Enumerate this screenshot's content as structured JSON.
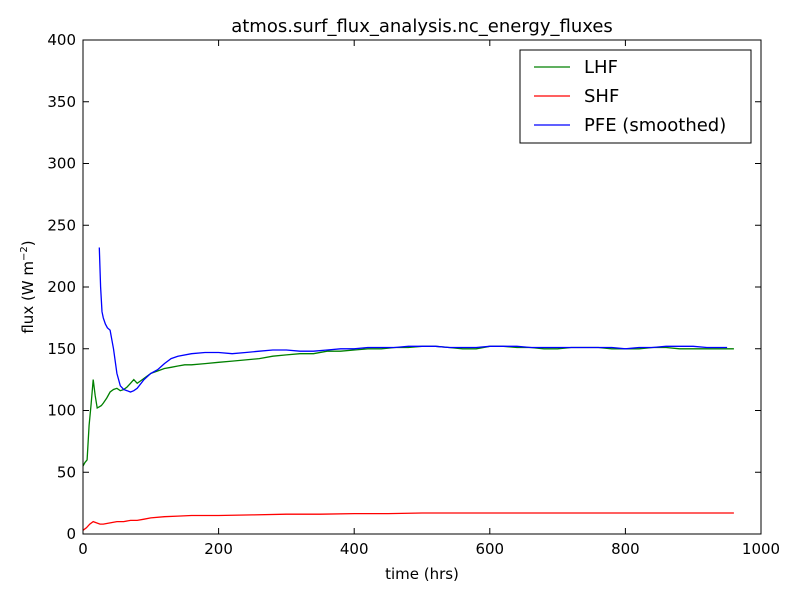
{
  "chart_data": {
    "type": "line",
    "title": "atmos.surf_flux_analysis.nc_energy_fluxes",
    "xlabel": "time (hrs)",
    "ylabel_main": "flux (W m",
    "ylabel_sup": "−2",
    "ylabel_close": ")",
    "xlim": [
      0,
      1000
    ],
    "ylim": [
      0,
      400
    ],
    "xticks": [
      0,
      200,
      400,
      600,
      800,
      1000
    ],
    "yticks": [
      0,
      50,
      100,
      150,
      200,
      250,
      300,
      350,
      400
    ],
    "grid": false,
    "legend_position": "top-right",
    "series": [
      {
        "name": "LHF",
        "color": "#008000",
        "x": [
          0,
          3,
          6,
          9,
          12,
          15,
          18,
          21,
          24,
          27,
          30,
          35,
          40,
          45,
          50,
          55,
          60,
          65,
          70,
          75,
          80,
          85,
          90,
          95,
          100,
          110,
          120,
          130,
          140,
          150,
          160,
          180,
          200,
          220,
          240,
          260,
          280,
          300,
          320,
          340,
          360,
          380,
          400,
          420,
          440,
          460,
          480,
          500,
          520,
          540,
          560,
          580,
          600,
          620,
          640,
          660,
          680,
          700,
          720,
          740,
          760,
          780,
          800,
          820,
          840,
          860,
          880,
          900,
          920,
          940,
          960
        ],
        "y": [
          55,
          58,
          60,
          88,
          105,
          125,
          112,
          102,
          103,
          104,
          106,
          110,
          115,
          117,
          118,
          116,
          117,
          119,
          122,
          125,
          122,
          124,
          126,
          128,
          130,
          132,
          134,
          135,
          136,
          137,
          137,
          138,
          139,
          140,
          141,
          142,
          144,
          145,
          146,
          146,
          148,
          148,
          149,
          150,
          150,
          151,
          151,
          152,
          152,
          151,
          150,
          150,
          152,
          152,
          151,
          151,
          150,
          150,
          151,
          151,
          151,
          150,
          150,
          150,
          151,
          151,
          150,
          150,
          150,
          150,
          150
        ]
      },
      {
        "name": "SHF",
        "color": "#ff0000",
        "x": [
          0,
          5,
          10,
          15,
          20,
          25,
          30,
          40,
          50,
          60,
          70,
          80,
          90,
          100,
          120,
          140,
          160,
          200,
          250,
          300,
          350,
          400,
          450,
          500,
          550,
          600,
          650,
          700,
          750,
          800,
          850,
          900,
          960
        ],
        "y": [
          3,
          5,
          8,
          10,
          9,
          8,
          8,
          9,
          10,
          10,
          11,
          11,
          12,
          13,
          14,
          14.5,
          15,
          15,
          15.5,
          16,
          16,
          16.5,
          16.5,
          17,
          17,
          17,
          17,
          17,
          17,
          17,
          17,
          17,
          17
        ]
      },
      {
        "name": "PFE (smoothed)",
        "color": "#0000ff",
        "x": [
          24,
          26,
          28,
          30,
          33,
          36,
          40,
          45,
          50,
          55,
          60,
          65,
          70,
          75,
          80,
          90,
          100,
          110,
          120,
          130,
          140,
          160,
          180,
          200,
          220,
          240,
          260,
          280,
          300,
          320,
          340,
          360,
          380,
          400,
          420,
          440,
          460,
          480,
          500,
          520,
          540,
          560,
          580,
          600,
          620,
          640,
          660,
          680,
          700,
          720,
          740,
          760,
          780,
          800,
          820,
          840,
          860,
          880,
          900,
          920,
          940,
          950
        ],
        "y": [
          232,
          200,
          180,
          175,
          170,
          167,
          165,
          150,
          130,
          120,
          117,
          116,
          115,
          116,
          118,
          125,
          130,
          133,
          138,
          142,
          144,
          146,
          147,
          147,
          146,
          147,
          148,
          149,
          149,
          148,
          148,
          149,
          150,
          150,
          151,
          151,
          151,
          152,
          152,
          152,
          151,
          151,
          151,
          152,
          152,
          152,
          151,
          151,
          151,
          151,
          151,
          151,
          151,
          150,
          151,
          151,
          152,
          152,
          152,
          151,
          151,
          151
        ]
      }
    ]
  }
}
